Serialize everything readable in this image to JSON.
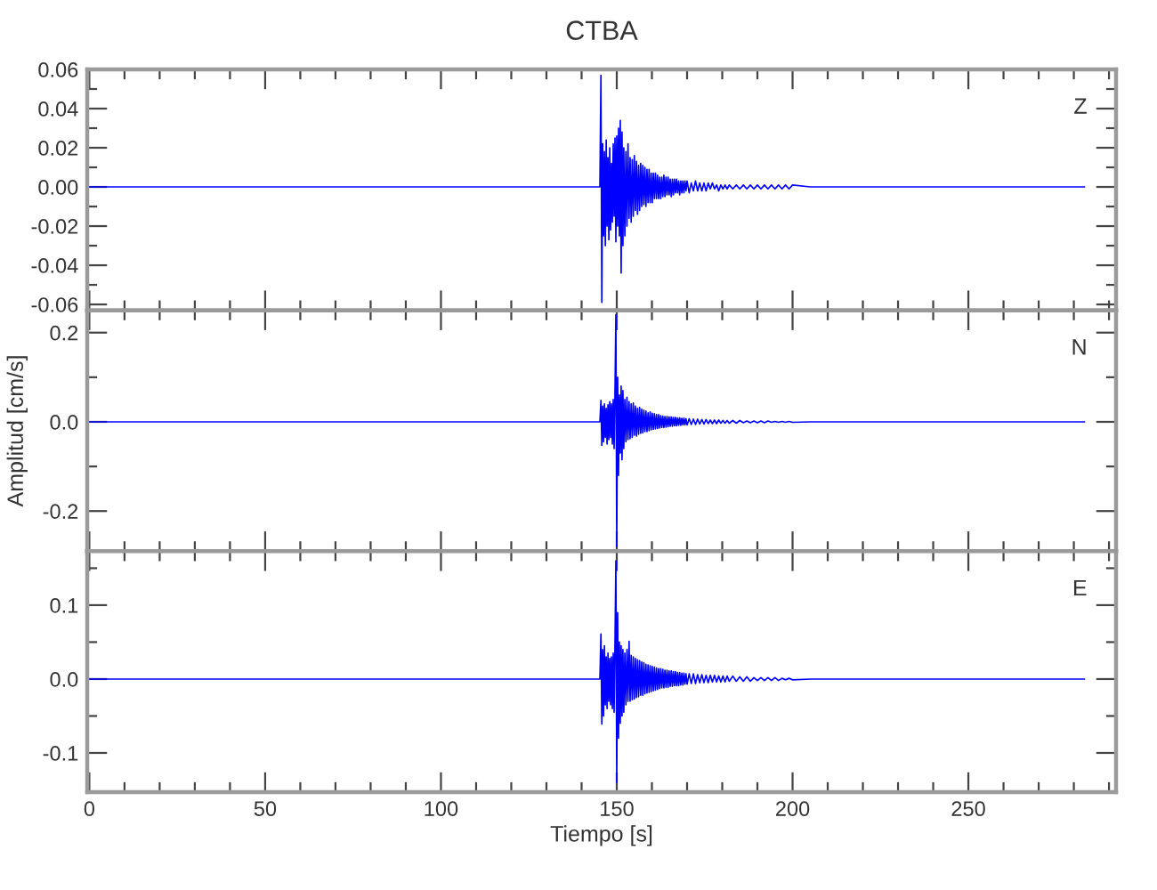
{
  "chart_data": [
    {
      "type": "line",
      "title": "CTBA",
      "annotations": [
        "Z"
      ],
      "tick_labels": "y",
      "x": [
        0,
        144,
        145.2,
        145.5,
        145.75,
        146,
        146.25,
        146.5,
        146.75,
        147,
        147.25,
        147.5,
        147.75,
        148,
        148.25,
        148.5,
        148.75,
        149,
        149.25,
        149.5,
        149.75,
        150,
        150.25,
        150.5,
        150.75,
        151,
        151.25,
        151.5,
        151.75,
        152,
        152.3,
        152.6,
        152.9,
        153.2,
        153.5,
        153.8,
        154.1,
        154.4,
        154.7,
        155.0,
        155.3,
        155.6,
        155.9,
        156.2,
        156.5,
        156.8,
        157.1,
        157.4,
        157.7,
        158.0,
        158.3,
        158.6,
        158.9,
        159.2,
        159.5,
        159.8,
        160.1,
        160.4,
        160.7,
        161.0,
        161.3,
        161.6,
        161.9,
        162.2,
        162.5,
        162.8,
        163.1,
        163.4,
        163.7,
        164.0,
        164.3,
        164.6,
        164.9,
        165.2,
        165.5,
        165.8,
        166.1,
        166.4,
        166.7,
        167.0,
        167.3,
        167.6,
        167.9,
        168.2,
        168.5,
        168.8,
        169.1,
        169.4,
        169.7,
        170.0,
        170.6,
        171.2,
        171.8,
        172.4,
        173.0,
        173.6,
        174.2,
        174.8,
        175.4,
        176.0,
        176.6,
        177.2,
        177.8,
        178.4,
        179.0,
        179.6,
        180.2,
        180.8,
        181.4,
        182.0,
        183,
        184,
        185,
        186,
        187,
        188,
        189,
        190,
        191,
        192,
        193,
        194,
        195,
        196,
        197,
        198,
        199,
        200,
        205,
        215,
        230,
        250,
        270,
        283
      ],
      "series": [
        {
          "color": "#0000ff",
          "values": [
            0,
            0,
            0,
            0.057,
            -0.059,
            0.022,
            -0.025,
            0.018,
            -0.03,
            0.024,
            -0.02,
            0.015,
            -0.027,
            0.02,
            -0.022,
            0.012,
            -0.018,
            0.022,
            -0.015,
            0.025,
            -0.028,
            0.026,
            -0.02,
            0.03,
            -0.025,
            0.034,
            -0.044,
            0.028,
            -0.03,
            0.02,
            -0.025,
            0.018,
            -0.02,
            0.022,
            -0.016,
            0.015,
            -0.018,
            0.014,
            -0.015,
            0.016,
            -0.012,
            0.013,
            -0.014,
            0.011,
            -0.012,
            0.012,
            -0.01,
            0.011,
            -0.009,
            0.01,
            -0.01,
            0.009,
            -0.008,
            0.009,
            -0.008,
            0.007,
            -0.008,
            0.007,
            -0.006,
            0.007,
            -0.006,
            0.006,
            -0.006,
            0.005,
            -0.006,
            0.005,
            -0.005,
            0.006,
            -0.005,
            0.005,
            -0.004,
            0.005,
            -0.004,
            0.004,
            -0.005,
            0.004,
            -0.004,
            0.004,
            -0.003,
            0.004,
            -0.003,
            0.003,
            -0.004,
            0.003,
            -0.003,
            0.003,
            -0.003,
            0.003,
            -0.002,
            0.003,
            -0.003,
            0.002,
            -0.002,
            0.003,
            -0.002,
            0.002,
            -0.002,
            0.002,
            -0.002,
            0.002,
            -0.001,
            0.002,
            -0.001,
            0.001,
            -0.002,
            0.001,
            -0.001,
            0.001,
            -0.001,
            0.001,
            -0.001,
            0.001,
            -0.001,
            0.001,
            -0.001,
            0.001,
            -0.001,
            0.001,
            -0.001,
            0.001,
            -0.001,
            0.001,
            -0.001,
            0.001,
            -0.001,
            0.001,
            -0.001,
            0.001,
            0,
            0,
            0,
            0,
            0,
            0
          ]
        }
      ],
      "xlim": [
        -0.6,
        292
      ],
      "xticks": [
        0,
        {
          "value": 10,
          "label": null
        },
        {
          "value": 20,
          "label": null
        },
        {
          "value": 30,
          "label": null
        },
        {
          "value": 40,
          "label": null
        },
        50,
        {
          "value": 60,
          "label": null
        },
        {
          "value": 70,
          "label": null
        },
        {
          "value": 80,
          "label": null
        },
        {
          "value": 90,
          "label": null
        },
        100,
        {
          "value": 110,
          "label": null
        },
        {
          "value": 120,
          "label": null
        },
        {
          "value": 130,
          "label": null
        },
        {
          "value": 140,
          "label": null
        },
        150,
        {
          "value": 160,
          "label": null
        },
        {
          "value": 170,
          "label": null
        },
        {
          "value": 180,
          "label": null
        },
        {
          "value": 190,
          "label": null
        },
        200,
        {
          "value": 210,
          "label": null
        },
        {
          "value": 220,
          "label": null
        },
        {
          "value": 230,
          "label": null
        },
        {
          "value": 240,
          "label": null
        },
        250,
        {
          "value": 260,
          "label": null
        },
        {
          "value": 270,
          "label": null
        },
        {
          "value": 280,
          "label": null
        },
        {
          "value": 290,
          "label": null
        }
      ],
      "ylim": [
        -0.063,
        0.06
      ],
      "yticks": [
        {
          "value": -0.06,
          "label": "-0.06"
        },
        {
          "value": -0.05,
          "label": null
        },
        {
          "value": -0.04,
          "label": "-0.04"
        },
        {
          "value": -0.03,
          "label": null
        },
        {
          "value": -0.02,
          "label": "-0.02"
        },
        {
          "value": -0.01,
          "label": null
        },
        {
          "value": 0,
          "label": "0.00"
        },
        {
          "value": 0.01,
          "label": null
        },
        {
          "value": 0.02,
          "label": "0.02"
        },
        {
          "value": 0.03,
          "label": null
        },
        {
          "value": 0.04,
          "label": "0.04"
        },
        {
          "value": 0.05,
          "label": null
        },
        {
          "value": 0.06,
          "label": "0.06"
        }
      ]
    },
    {
      "type": "line",
      "ylabel": "Amplitud [cm/s]",
      "annotations": [
        "N"
      ],
      "tick_labels": "y",
      "x": [
        0,
        144,
        145.2,
        145.5,
        145.75,
        146,
        146.25,
        146.5,
        146.75,
        147,
        147.25,
        147.5,
        147.75,
        148,
        148.25,
        148.5,
        148.75,
        149,
        149.25,
        149.5,
        149.75,
        150,
        150.25,
        150.5,
        150.75,
        151,
        151.25,
        151.5,
        151.75,
        152,
        152.3,
        152.6,
        152.9,
        153.2,
        153.5,
        153.8,
        154.1,
        154.4,
        154.7,
        155.0,
        155.3,
        155.6,
        155.9,
        156.2,
        156.5,
        156.8,
        157.1,
        157.4,
        157.7,
        158.0,
        158.3,
        158.6,
        158.9,
        159.2,
        159.5,
        159.8,
        160.1,
        160.4,
        160.7,
        161.0,
        161.3,
        161.6,
        161.9,
        162.2,
        162.5,
        162.8,
        163.1,
        163.4,
        163.7,
        164.0,
        164.3,
        164.6,
        164.9,
        165.2,
        165.5,
        165.8,
        166.1,
        166.4,
        166.7,
        167.0,
        167.3,
        167.6,
        167.9,
        168.2,
        168.5,
        168.8,
        169.1,
        169.4,
        169.7,
        170.0,
        170.6,
        171.2,
        171.8,
        172.4,
        173.0,
        173.6,
        174.2,
        174.8,
        175.4,
        176.0,
        176.6,
        177.2,
        177.8,
        178.4,
        179.0,
        179.6,
        180.2,
        180.8,
        181.4,
        182.0,
        183,
        184,
        185,
        186,
        187,
        188,
        189,
        190,
        191,
        192,
        193,
        194,
        195,
        196,
        197,
        198,
        199,
        200,
        205,
        215,
        230,
        250,
        270,
        283
      ],
      "series": [
        {
          "color": "#0000ff",
          "values": [
            0,
            0,
            0,
            0.048,
            -0.053,
            0.035,
            -0.045,
            0.04,
            -0.035,
            0.03,
            -0.05,
            0.038,
            -0.04,
            0.045,
            -0.035,
            0.04,
            -0.05,
            0.05,
            -0.06,
            0.07,
            0.24,
            -0.28,
            0.1,
            -0.12,
            0.06,
            -0.07,
            0.08,
            -0.085,
            0.07,
            -0.06,
            0.05,
            -0.045,
            0.055,
            -0.04,
            0.045,
            -0.038,
            0.04,
            -0.035,
            0.042,
            -0.03,
            0.035,
            -0.032,
            0.03,
            -0.028,
            0.032,
            -0.026,
            0.028,
            -0.025,
            0.026,
            -0.022,
            0.024,
            -0.022,
            0.02,
            -0.02,
            0.022,
            -0.018,
            0.019,
            -0.017,
            0.018,
            -0.016,
            0.016,
            -0.015,
            0.016,
            -0.014,
            0.014,
            -0.013,
            0.013,
            -0.013,
            0.012,
            -0.012,
            0.012,
            -0.011,
            0.011,
            -0.01,
            0.011,
            -0.01,
            0.01,
            -0.009,
            0.01,
            -0.009,
            0.009,
            -0.008,
            0.009,
            -0.008,
            0.008,
            -0.007,
            0.008,
            -0.007,
            0.007,
            -0.007,
            0.007,
            -0.006,
            0.006,
            -0.006,
            0.006,
            -0.005,
            0.005,
            -0.005,
            0.005,
            -0.004,
            0.004,
            -0.004,
            0.004,
            -0.004,
            0.004,
            -0.003,
            0.003,
            -0.003,
            0.003,
            -0.003,
            0.003,
            -0.003,
            0.003,
            -0.002,
            0.002,
            -0.002,
            0.002,
            -0.002,
            0.002,
            -0.002,
            0.002,
            -0.001,
            0.001,
            -0.001,
            0.001,
            -0.001,
            0.001,
            -0.001,
            0,
            0,
            0,
            0,
            0,
            0
          ]
        }
      ],
      "xlim": [
        -0.6,
        292
      ],
      "xticks": [
        0,
        {
          "value": 10,
          "label": null
        },
        {
          "value": 20,
          "label": null
        },
        {
          "value": 30,
          "label": null
        },
        {
          "value": 40,
          "label": null
        },
        50,
        {
          "value": 60,
          "label": null
        },
        {
          "value": 70,
          "label": null
        },
        {
          "value": 80,
          "label": null
        },
        {
          "value": 90,
          "label": null
        },
        100,
        {
          "value": 110,
          "label": null
        },
        {
          "value": 120,
          "label": null
        },
        {
          "value": 130,
          "label": null
        },
        {
          "value": 140,
          "label": null
        },
        150,
        {
          "value": 160,
          "label": null
        },
        {
          "value": 170,
          "label": null
        },
        {
          "value": 180,
          "label": null
        },
        {
          "value": 190,
          "label": null
        },
        200,
        {
          "value": 210,
          "label": null
        },
        {
          "value": 220,
          "label": null
        },
        {
          "value": 230,
          "label": null
        },
        {
          "value": 240,
          "label": null
        },
        250,
        {
          "value": 260,
          "label": null
        },
        {
          "value": 270,
          "label": null
        },
        {
          "value": 280,
          "label": null
        },
        {
          "value": 290,
          "label": null
        }
      ],
      "ylim": [
        -0.29,
        0.25
      ],
      "yticks": [
        {
          "value": -0.2,
          "label": "-0.2"
        },
        {
          "value": -0.1,
          "label": null
        },
        {
          "value": 0,
          "label": "0.0"
        },
        {
          "value": 0.1,
          "label": null
        },
        {
          "value": 0.2,
          "label": "0.2"
        }
      ]
    },
    {
      "type": "line",
      "xlabel": "Tiempo [s]",
      "annotations": [
        "E"
      ],
      "x": [
        0,
        144,
        145.2,
        145.5,
        145.75,
        146,
        146.25,
        146.5,
        146.75,
        147,
        147.25,
        147.5,
        147.75,
        148,
        148.25,
        148.5,
        148.75,
        149,
        149.25,
        149.5,
        149.75,
        150,
        150.25,
        150.5,
        150.75,
        151,
        151.25,
        151.5,
        151.75,
        152,
        152.3,
        152.6,
        152.9,
        153.2,
        153.5,
        153.8,
        154.1,
        154.4,
        154.7,
        155.0,
        155.3,
        155.6,
        155.9,
        156.2,
        156.5,
        156.8,
        157.1,
        157.4,
        157.7,
        158.0,
        158.3,
        158.6,
        158.9,
        159.2,
        159.5,
        159.8,
        160.1,
        160.4,
        160.7,
        161.0,
        161.3,
        161.6,
        161.9,
        162.2,
        162.5,
        162.8,
        163.1,
        163.4,
        163.7,
        164.0,
        164.3,
        164.6,
        164.9,
        165.2,
        165.5,
        165.8,
        166.1,
        166.4,
        166.7,
        167.0,
        167.3,
        167.6,
        167.9,
        168.2,
        168.5,
        168.8,
        169.1,
        169.4,
        169.7,
        170.0,
        170.6,
        171.2,
        171.8,
        172.4,
        173.0,
        173.6,
        174.2,
        174.8,
        175.4,
        176.0,
        176.6,
        177.2,
        177.8,
        178.4,
        179.0,
        179.6,
        180.2,
        180.8,
        181.4,
        182.0,
        183,
        184,
        185,
        186,
        187,
        188,
        189,
        190,
        191,
        192,
        193,
        194,
        195,
        196,
        197,
        198,
        199,
        200,
        205,
        215,
        230,
        250,
        270,
        283
      ],
      "series": [
        {
          "color": "#0000ff",
          "values": [
            0,
            0,
            0,
            0.061,
            -0.061,
            0.04,
            -0.05,
            0.045,
            -0.035,
            0.03,
            -0.04,
            0.035,
            -0.03,
            0.028,
            -0.035,
            0.03,
            -0.04,
            0.035,
            -0.045,
            0.05,
            0.16,
            -0.14,
            0.09,
            -0.08,
            0.05,
            -0.06,
            0.045,
            -0.05,
            0.04,
            -0.045,
            0.035,
            -0.035,
            0.04,
            -0.03,
            0.051,
            -0.03,
            0.032,
            -0.028,
            0.03,
            -0.027,
            0.028,
            -0.025,
            0.026,
            -0.024,
            0.025,
            -0.022,
            0.023,
            -0.022,
            0.022,
            -0.02,
            0.02,
            -0.019,
            0.019,
            -0.018,
            0.018,
            -0.017,
            0.017,
            -0.016,
            0.016,
            -0.015,
            0.015,
            -0.014,
            0.014,
            -0.013,
            0.014,
            -0.012,
            0.013,
            -0.012,
            0.012,
            -0.011,
            0.012,
            -0.011,
            0.011,
            -0.01,
            0.011,
            -0.01,
            0.01,
            -0.009,
            0.01,
            -0.009,
            0.009,
            -0.009,
            0.009,
            -0.008,
            0.008,
            -0.008,
            0.008,
            -0.007,
            0.007,
            -0.007,
            0.007,
            -0.006,
            0.007,
            -0.006,
            0.006,
            -0.005,
            0.006,
            -0.005,
            0.005,
            -0.005,
            0.005,
            -0.004,
            0.005,
            -0.004,
            0.004,
            -0.004,
            0.004,
            -0.004,
            0.004,
            -0.003,
            0.004,
            -0.003,
            0.003,
            -0.003,
            0.003,
            -0.003,
            0.002,
            -0.002,
            0.002,
            -0.002,
            0.002,
            -0.002,
            0.002,
            -0.002,
            0.001,
            -0.001,
            0.001,
            -0.001,
            0,
            0,
            0,
            0,
            0,
            0
          ]
        }
      ],
      "xlim": [
        -0.6,
        292
      ],
      "xticks": [
        0,
        {
          "value": 10,
          "label": null
        },
        {
          "value": 20,
          "label": null
        },
        {
          "value": 30,
          "label": null
        },
        {
          "value": 40,
          "label": null
        },
        50,
        {
          "value": 60,
          "label": null
        },
        {
          "value": 70,
          "label": null
        },
        {
          "value": 80,
          "label": null
        },
        {
          "value": 90,
          "label": null
        },
        100,
        {
          "value": 110,
          "label": null
        },
        {
          "value": 120,
          "label": null
        },
        {
          "value": 130,
          "label": null
        },
        {
          "value": 140,
          "label": null
        },
        150,
        {
          "value": 160,
          "label": null
        },
        {
          "value": 170,
          "label": null
        },
        {
          "value": 180,
          "label": null
        },
        {
          "value": 190,
          "label": null
        },
        200,
        {
          "value": 210,
          "label": null
        },
        {
          "value": 220,
          "label": null
        },
        {
          "value": 230,
          "label": null
        },
        {
          "value": 240,
          "label": null
        },
        250,
        {
          "value": 260,
          "label": null
        },
        {
          "value": 270,
          "label": null
        },
        {
          "value": 280,
          "label": null
        },
        {
          "value": 290,
          "label": null
        }
      ],
      "ylim": [
        -0.153,
        0.173
      ],
      "yticks": [
        {
          "value": -0.1,
          "label": "-0.1"
        },
        {
          "value": -0.05,
          "label": null
        },
        {
          "value": 0,
          "label": "0.0"
        },
        {
          "value": 0.05,
          "label": null
        },
        {
          "value": 0.1,
          "label": "0.1"
        },
        {
          "value": 0.15,
          "label": null
        }
      ]
    }
  ]
}
